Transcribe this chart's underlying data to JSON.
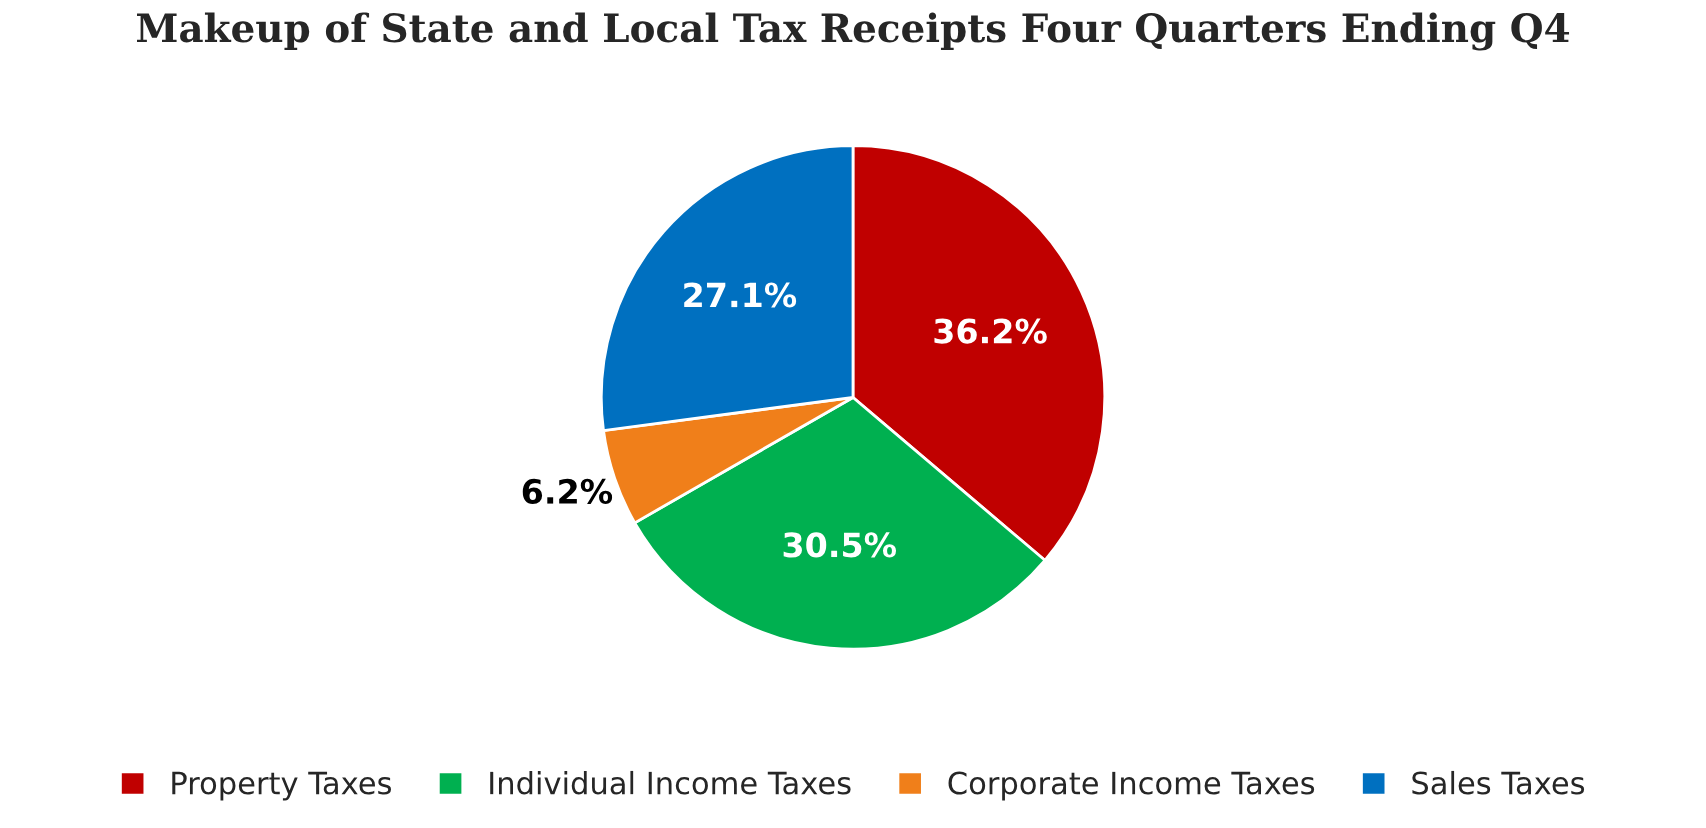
{
  "chart_data": {
    "type": "pie",
    "title": "Makeup of State and Local Tax Receipts Four Quarters Ending Q4",
    "categories": [
      "Property Taxes",
      "Individual Income Taxes",
      "Corporate Income Taxes",
      "Sales Taxes"
    ],
    "values": [
      36.2,
      30.5,
      6.2,
      27.1
    ],
    "value_labels": [
      "36.2%",
      "30.5%",
      "6.2%",
      "27.1%"
    ],
    "colors": [
      "#c00000",
      "#00b050",
      "#f07f1a",
      "#0070c0"
    ],
    "legend": "bottom"
  }
}
